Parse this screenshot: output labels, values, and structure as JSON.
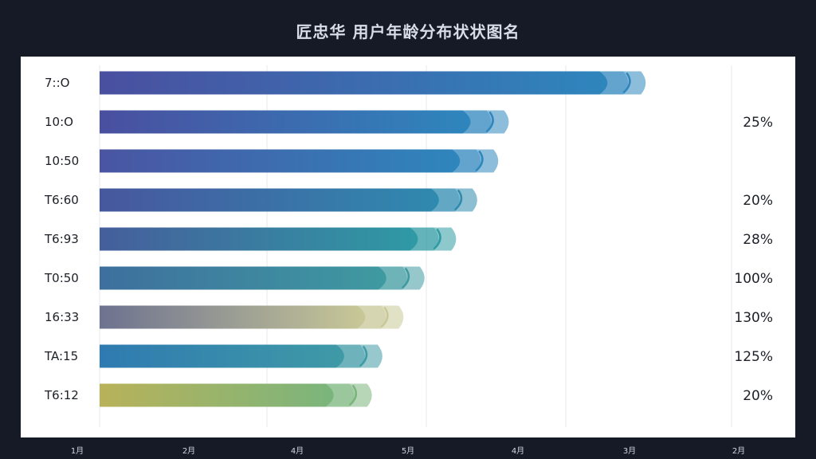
{
  "title": "匠忠华 用户年龄分布状状图名",
  "colors": {
    "background": "#161a26",
    "panel": "#ffffff",
    "grid": "#e6e9ef"
  },
  "chart_data": {
    "type": "bar",
    "orientation": "horizontal",
    "title": "匠忠华 用户年龄分布状状图名",
    "categories": [
      "7::O",
      "10:O",
      "10:50",
      "T6:60",
      "T6:93",
      "T0:50",
      "16:33",
      "TA:15",
      "T6:12"
    ],
    "values": [
      6.2,
      4.9,
      4.8,
      4.6,
      4.4,
      4.1,
      3.9,
      3.7,
      3.6
    ],
    "percent_labels": [
      "",
      "25%",
      "",
      "20%",
      "28%",
      "100%",
      "130%",
      "125%",
      "20%"
    ],
    "xticks": [
      "1月",
      "2月",
      "4月",
      "5月",
      "4月",
      "3月",
      "2月"
    ],
    "xlim": [
      1,
      7
    ],
    "grid": true,
    "bar_colors": [
      [
        "#4a4fa0",
        "#2e86bd"
      ],
      [
        "#4a4fa0",
        "#2e86bd"
      ],
      [
        "#4a55a2",
        "#2e86bd"
      ],
      [
        "#47579e",
        "#2f8aaf"
      ],
      [
        "#455e9c",
        "#2f9aa4"
      ],
      [
        "#3d6f9e",
        "#3f9aa0"
      ],
      [
        "#6d7290",
        "#c8c897"
      ],
      [
        "#2f7ab1",
        "#3f9aa6"
      ],
      [
        "#b8b25a",
        "#7ab57c"
      ]
    ]
  }
}
